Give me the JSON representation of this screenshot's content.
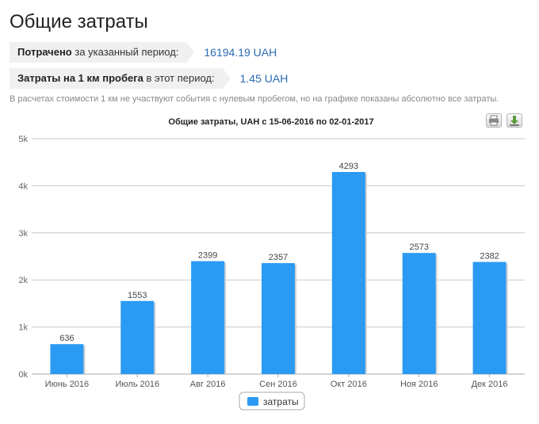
{
  "page": {
    "title": "Общие затраты"
  },
  "stats": [
    {
      "label_bold": "Потрачено",
      "label_rest": " за указанный период:",
      "value": "16194.19 UAH"
    },
    {
      "label_bold": "Затраты на 1 км пробега",
      "label_rest": " в этот период:",
      "value": "1.45 UAH"
    }
  ],
  "note": "В расчетах стоимости 1 км не участвуют события с нулевым пробегом, но на графике показаны абсолютно все затраты.",
  "toolbar": {
    "print_icon": "printer-icon",
    "download_icon": "download-icon"
  },
  "chart_data": {
    "type": "bar",
    "title": "Общие затраты, UAH с 15-06-2016 по 02-01-2017",
    "categories": [
      "Июнь 2016",
      "Июль 2016",
      "Авг 2016",
      "Сен 2016",
      "Окт 2016",
      "Ноя 2016",
      "Дек 2016"
    ],
    "series": [
      {
        "name": "затраты",
        "values": [
          636,
          1553,
          2399,
          2357,
          4293,
          2573,
          2382
        ],
        "color": "#2b9af3"
      }
    ],
    "ylim": [
      0,
      5000
    ],
    "yticks": [
      0,
      1000,
      2000,
      3000,
      4000,
      5000
    ],
    "ytick_labels": [
      "0k",
      "1k",
      "2k",
      "3k",
      "4k",
      "5k"
    ],
    "grid": true,
    "legend_position": "bottom-center",
    "xlabel": "",
    "ylabel": ""
  }
}
